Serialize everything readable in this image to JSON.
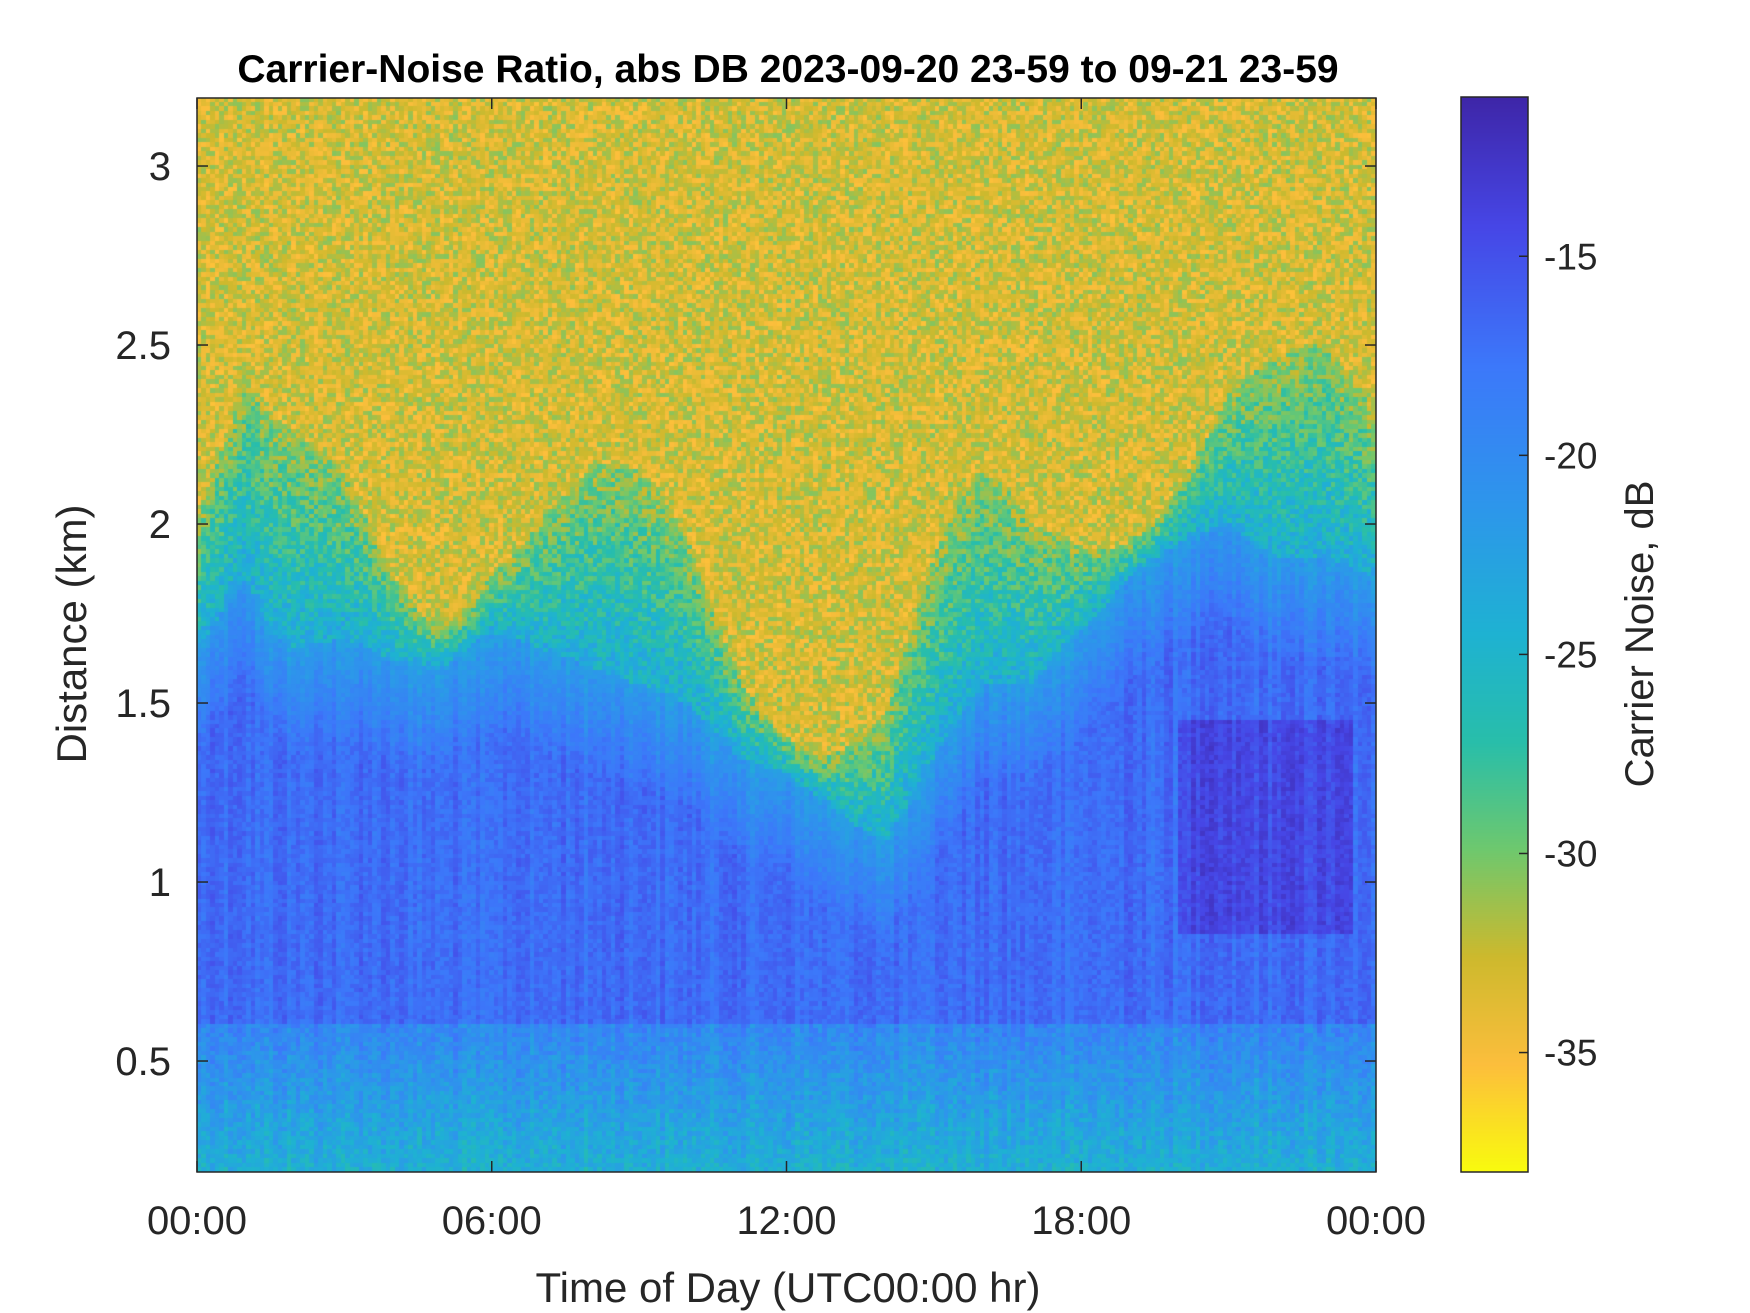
{
  "chart_data": {
    "type": "heatmap",
    "title": "Carrier-Noise Ratio, abs DB 2023-09-20 23-59 to 09-21 23-59",
    "xlabel": "Time of Day (UTC00:00 hr)",
    "ylabel": "Distance (km)",
    "xlim": [
      0,
      24
    ],
    "ylim": [
      0.19,
      3.19
    ],
    "x_ticks": [
      {
        "value": 0,
        "label": "00:00"
      },
      {
        "value": 6,
        "label": "06:00"
      },
      {
        "value": 12,
        "label": "12:00"
      },
      {
        "value": 18,
        "label": "18:00"
      },
      {
        "value": 24,
        "label": "00:00"
      }
    ],
    "y_ticks": [
      {
        "value": 0.5,
        "label": "0.5"
      },
      {
        "value": 1,
        "label": "1"
      },
      {
        "value": 1.5,
        "label": "1.5"
      },
      {
        "value": 2,
        "label": "2"
      },
      {
        "value": 2.5,
        "label": "2.5"
      },
      {
        "value": 3,
        "label": "3"
      }
    ],
    "colorbar": {
      "label": "Carrier Noise, dB",
      "clim": [
        -38,
        -11
      ],
      "colormap": "parula (reversed: yellow = low, dark blue = high)",
      "ticks": [
        {
          "value": -15,
          "label": "-15"
        },
        {
          "value": -20,
          "label": "-20"
        },
        {
          "value": -25,
          "label": "-25"
        },
        {
          "value": -30,
          "label": "-30"
        },
        {
          "value": -35,
          "label": "-35"
        }
      ]
    },
    "regions": {
      "noise_floor_above_boundary_db": -33,
      "aerosol_layer_core_db": -17,
      "peak_signal_db": -13,
      "near_ground_db": -24
    },
    "boundary_layer_top_km": {
      "time_h": [
        0,
        1,
        1.5,
        2,
        3,
        4,
        5,
        6,
        7,
        8,
        9,
        10,
        11,
        12,
        13,
        14,
        15,
        16,
        17,
        18,
        19,
        20,
        21,
        22,
        23,
        24
      ],
      "top_km": [
        1.65,
        1.85,
        1.7,
        1.65,
        1.68,
        1.62,
        1.6,
        1.7,
        1.65,
        1.6,
        1.55,
        1.5,
        1.35,
        1.3,
        1.2,
        1.1,
        1.35,
        1.55,
        1.55,
        1.7,
        1.85,
        1.95,
        2.0,
        1.9,
        1.9,
        1.85
      ]
    },
    "colors": {
      "low": "#f9fb0e",
      "mid_low": "#fbbc3c",
      "mid": "#26bcb1",
      "mid_high": "#3c97f7",
      "high": "#3e26a8"
    }
  }
}
